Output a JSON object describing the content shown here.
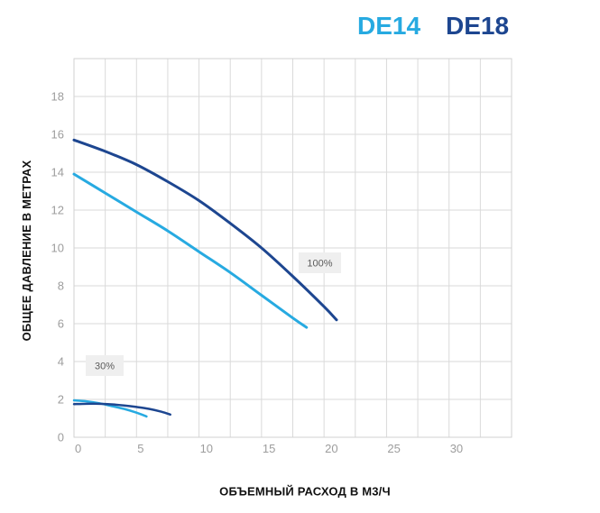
{
  "chart_data": {
    "type": "line",
    "xlabel": "ОБЪЕМНЫЙ РАСХОД В М3/Ч",
    "ylabel": "ОБЩЕЕ ДАВЛЕНИЕ В МЕТРАХ",
    "xlim": [
      0,
      35
    ],
    "ylim": [
      0,
      20
    ],
    "xticks": [
      0,
      5,
      10,
      15,
      20,
      25,
      30
    ],
    "yticks": [
      0,
      2,
      4,
      6,
      8,
      10,
      12,
      14,
      16,
      18
    ],
    "grid": true,
    "legend_position": "top-right",
    "series": [
      {
        "name": "DE14",
        "color": "#27aae1",
        "curves": [
          {
            "speed": "100%",
            "x": [
              0,
              2.5,
              5,
              7.5,
              10,
              12.5,
              15,
              17.5,
              18.6
            ],
            "y": [
              13.9,
              12.9,
              11.9,
              10.9,
              9.8,
              8.7,
              7.5,
              6.3,
              5.8
            ]
          },
          {
            "speed": "30%",
            "x": [
              0,
              1,
              2,
              3,
              4,
              5,
              5.8
            ],
            "y": [
              1.95,
              1.9,
              1.8,
              1.65,
              1.5,
              1.3,
              1.1
            ]
          }
        ]
      },
      {
        "name": "DE18",
        "color": "#1d4690",
        "curves": [
          {
            "speed": "100%",
            "x": [
              0,
              2.5,
              5,
              7.5,
              10,
              12.5,
              15,
              17.5,
              20,
              21
            ],
            "y": [
              15.7,
              15.1,
              14.4,
              13.5,
              12.5,
              11.3,
              10.0,
              8.5,
              6.9,
              6.2
            ]
          },
          {
            "speed": "30%",
            "x": [
              0,
              1,
              2,
              3,
              4,
              5,
              6,
              7,
              7.7
            ],
            "y": [
              1.75,
              1.77,
              1.77,
              1.74,
              1.68,
              1.6,
              1.5,
              1.35,
              1.2
            ]
          }
        ]
      }
    ]
  }
}
